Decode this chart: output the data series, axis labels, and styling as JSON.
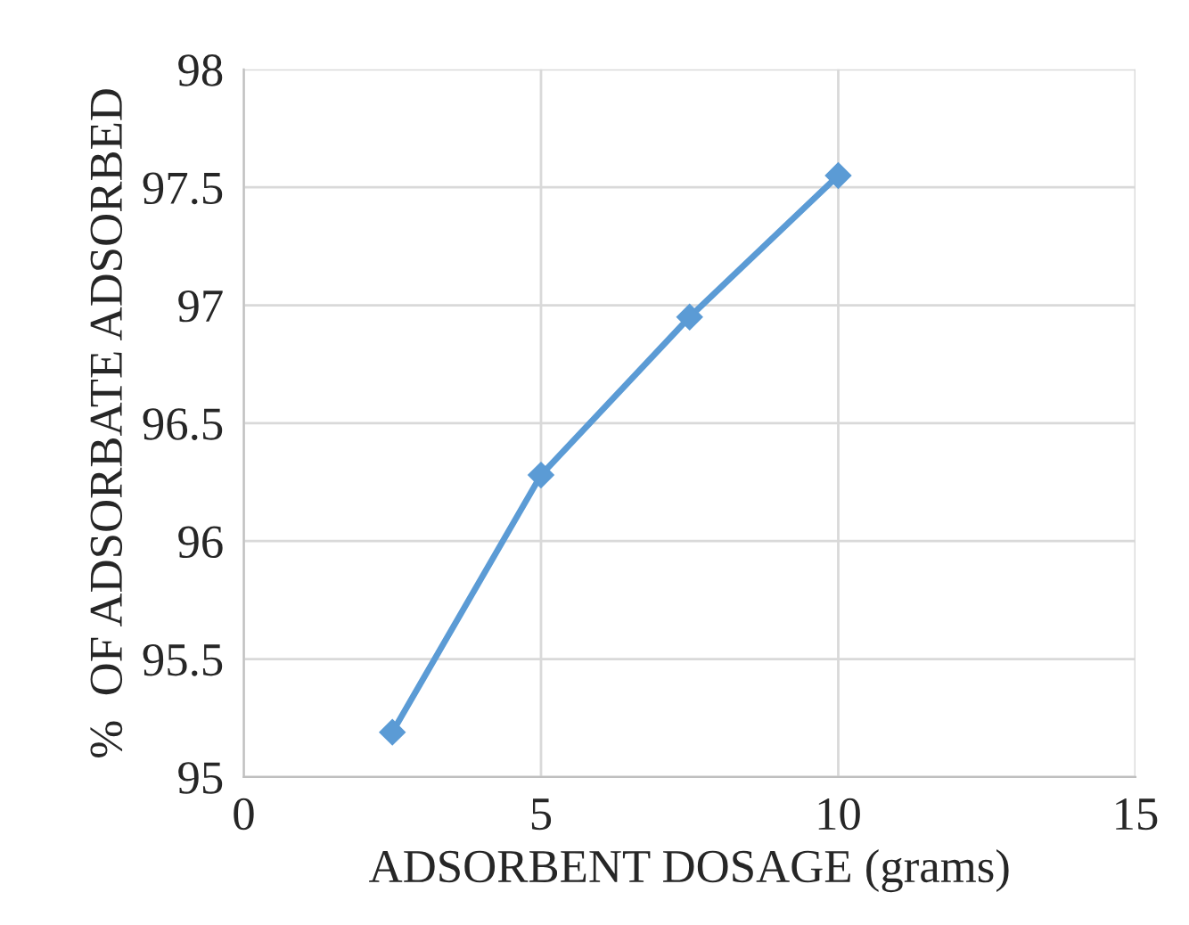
{
  "chart_data": {
    "type": "line",
    "xlabel": "ADSORBENT DOSAGE (grams)",
    "ylabel": "%  OF ADSORBATE ADSORBED",
    "x": [
      2.5,
      5,
      7.5,
      10
    ],
    "series": [
      {
        "color": "#5b9bd5",
        "values": [
          95.19,
          96.28,
          96.95,
          97.55
        ]
      }
    ],
    "xlim": [
      0,
      15
    ],
    "xticks": [
      0,
      5,
      10,
      15
    ],
    "ylim": [
      95,
      98
    ],
    "yticks": [
      95,
      95.5,
      96,
      96.5,
      97,
      97.5,
      98
    ],
    "grid": true,
    "marker": "diamond",
    "line_style": "solid"
  }
}
